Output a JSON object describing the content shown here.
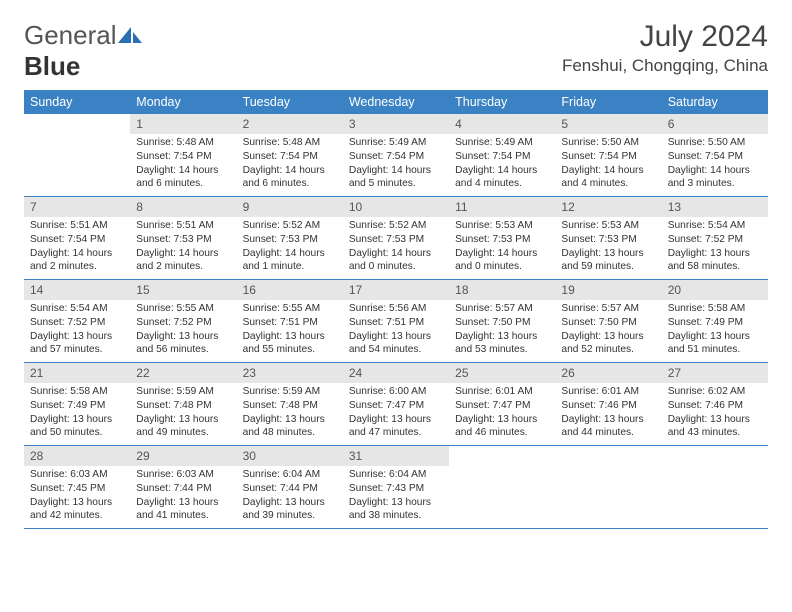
{
  "logo": {
    "text1": "General",
    "text2": "Blue",
    "icon_fill": "#2b6fb3"
  },
  "header": {
    "title": "July 2024",
    "location": "Fenshui, Chongqing, China"
  },
  "colors": {
    "header_bg": "#3b82c4",
    "daynum_bg": "#e6e6e6",
    "row_border": "#3b82c4"
  },
  "dow": [
    "Sunday",
    "Monday",
    "Tuesday",
    "Wednesday",
    "Thursday",
    "Friday",
    "Saturday"
  ],
  "weeks": [
    [
      {
        "n": "",
        "sr": "",
        "ss": "",
        "dl": ""
      },
      {
        "n": "1",
        "sr": "Sunrise: 5:48 AM",
        "ss": "Sunset: 7:54 PM",
        "dl": "Daylight: 14 hours and 6 minutes."
      },
      {
        "n": "2",
        "sr": "Sunrise: 5:48 AM",
        "ss": "Sunset: 7:54 PM",
        "dl": "Daylight: 14 hours and 6 minutes."
      },
      {
        "n": "3",
        "sr": "Sunrise: 5:49 AM",
        "ss": "Sunset: 7:54 PM",
        "dl": "Daylight: 14 hours and 5 minutes."
      },
      {
        "n": "4",
        "sr": "Sunrise: 5:49 AM",
        "ss": "Sunset: 7:54 PM",
        "dl": "Daylight: 14 hours and 4 minutes."
      },
      {
        "n": "5",
        "sr": "Sunrise: 5:50 AM",
        "ss": "Sunset: 7:54 PM",
        "dl": "Daylight: 14 hours and 4 minutes."
      },
      {
        "n": "6",
        "sr": "Sunrise: 5:50 AM",
        "ss": "Sunset: 7:54 PM",
        "dl": "Daylight: 14 hours and 3 minutes."
      }
    ],
    [
      {
        "n": "7",
        "sr": "Sunrise: 5:51 AM",
        "ss": "Sunset: 7:54 PM",
        "dl": "Daylight: 14 hours and 2 minutes."
      },
      {
        "n": "8",
        "sr": "Sunrise: 5:51 AM",
        "ss": "Sunset: 7:53 PM",
        "dl": "Daylight: 14 hours and 2 minutes."
      },
      {
        "n": "9",
        "sr": "Sunrise: 5:52 AM",
        "ss": "Sunset: 7:53 PM",
        "dl": "Daylight: 14 hours and 1 minute."
      },
      {
        "n": "10",
        "sr": "Sunrise: 5:52 AM",
        "ss": "Sunset: 7:53 PM",
        "dl": "Daylight: 14 hours and 0 minutes."
      },
      {
        "n": "11",
        "sr": "Sunrise: 5:53 AM",
        "ss": "Sunset: 7:53 PM",
        "dl": "Daylight: 14 hours and 0 minutes."
      },
      {
        "n": "12",
        "sr": "Sunrise: 5:53 AM",
        "ss": "Sunset: 7:53 PM",
        "dl": "Daylight: 13 hours and 59 minutes."
      },
      {
        "n": "13",
        "sr": "Sunrise: 5:54 AM",
        "ss": "Sunset: 7:52 PM",
        "dl": "Daylight: 13 hours and 58 minutes."
      }
    ],
    [
      {
        "n": "14",
        "sr": "Sunrise: 5:54 AM",
        "ss": "Sunset: 7:52 PM",
        "dl": "Daylight: 13 hours and 57 minutes."
      },
      {
        "n": "15",
        "sr": "Sunrise: 5:55 AM",
        "ss": "Sunset: 7:52 PM",
        "dl": "Daylight: 13 hours and 56 minutes."
      },
      {
        "n": "16",
        "sr": "Sunrise: 5:55 AM",
        "ss": "Sunset: 7:51 PM",
        "dl": "Daylight: 13 hours and 55 minutes."
      },
      {
        "n": "17",
        "sr": "Sunrise: 5:56 AM",
        "ss": "Sunset: 7:51 PM",
        "dl": "Daylight: 13 hours and 54 minutes."
      },
      {
        "n": "18",
        "sr": "Sunrise: 5:57 AM",
        "ss": "Sunset: 7:50 PM",
        "dl": "Daylight: 13 hours and 53 minutes."
      },
      {
        "n": "19",
        "sr": "Sunrise: 5:57 AM",
        "ss": "Sunset: 7:50 PM",
        "dl": "Daylight: 13 hours and 52 minutes."
      },
      {
        "n": "20",
        "sr": "Sunrise: 5:58 AM",
        "ss": "Sunset: 7:49 PM",
        "dl": "Daylight: 13 hours and 51 minutes."
      }
    ],
    [
      {
        "n": "21",
        "sr": "Sunrise: 5:58 AM",
        "ss": "Sunset: 7:49 PM",
        "dl": "Daylight: 13 hours and 50 minutes."
      },
      {
        "n": "22",
        "sr": "Sunrise: 5:59 AM",
        "ss": "Sunset: 7:48 PM",
        "dl": "Daylight: 13 hours and 49 minutes."
      },
      {
        "n": "23",
        "sr": "Sunrise: 5:59 AM",
        "ss": "Sunset: 7:48 PM",
        "dl": "Daylight: 13 hours and 48 minutes."
      },
      {
        "n": "24",
        "sr": "Sunrise: 6:00 AM",
        "ss": "Sunset: 7:47 PM",
        "dl": "Daylight: 13 hours and 47 minutes."
      },
      {
        "n": "25",
        "sr": "Sunrise: 6:01 AM",
        "ss": "Sunset: 7:47 PM",
        "dl": "Daylight: 13 hours and 46 minutes."
      },
      {
        "n": "26",
        "sr": "Sunrise: 6:01 AM",
        "ss": "Sunset: 7:46 PM",
        "dl": "Daylight: 13 hours and 44 minutes."
      },
      {
        "n": "27",
        "sr": "Sunrise: 6:02 AM",
        "ss": "Sunset: 7:46 PM",
        "dl": "Daylight: 13 hours and 43 minutes."
      }
    ],
    [
      {
        "n": "28",
        "sr": "Sunrise: 6:03 AM",
        "ss": "Sunset: 7:45 PM",
        "dl": "Daylight: 13 hours and 42 minutes."
      },
      {
        "n": "29",
        "sr": "Sunrise: 6:03 AM",
        "ss": "Sunset: 7:44 PM",
        "dl": "Daylight: 13 hours and 41 minutes."
      },
      {
        "n": "30",
        "sr": "Sunrise: 6:04 AM",
        "ss": "Sunset: 7:44 PM",
        "dl": "Daylight: 13 hours and 39 minutes."
      },
      {
        "n": "31",
        "sr": "Sunrise: 6:04 AM",
        "ss": "Sunset: 7:43 PM",
        "dl": "Daylight: 13 hours and 38 minutes."
      },
      {
        "n": "",
        "sr": "",
        "ss": "",
        "dl": ""
      },
      {
        "n": "",
        "sr": "",
        "ss": "",
        "dl": ""
      },
      {
        "n": "",
        "sr": "",
        "ss": "",
        "dl": ""
      }
    ]
  ]
}
